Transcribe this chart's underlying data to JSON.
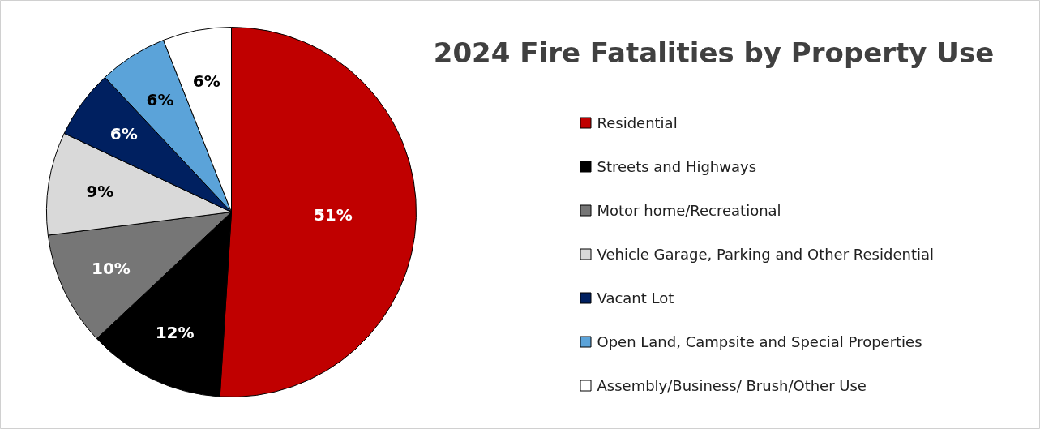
{
  "chart_data": {
    "type": "pie",
    "title": "2024 Fire Fatalities by Property Use",
    "categories": [
      "Residential",
      "Streets and Highways",
      "Motor home/Recreational",
      "Vehicle Garage, Parking and Other Residential",
      "Vacant Lot",
      "Open Land, Campsite and Special Properties",
      "Assembly/Business/ Brush/Other Use"
    ],
    "values": [
      51,
      12,
      10,
      9,
      6,
      6,
      6
    ],
    "colors": [
      "#c00000",
      "#000000",
      "#767676",
      "#d9d9d9",
      "#002060",
      "#5ba3d9",
      "#ffffff"
    ],
    "value_labels": [
      "51%",
      "12%",
      "10%",
      "9%",
      "6%",
      "6%",
      "6%"
    ],
    "legend": "right"
  }
}
